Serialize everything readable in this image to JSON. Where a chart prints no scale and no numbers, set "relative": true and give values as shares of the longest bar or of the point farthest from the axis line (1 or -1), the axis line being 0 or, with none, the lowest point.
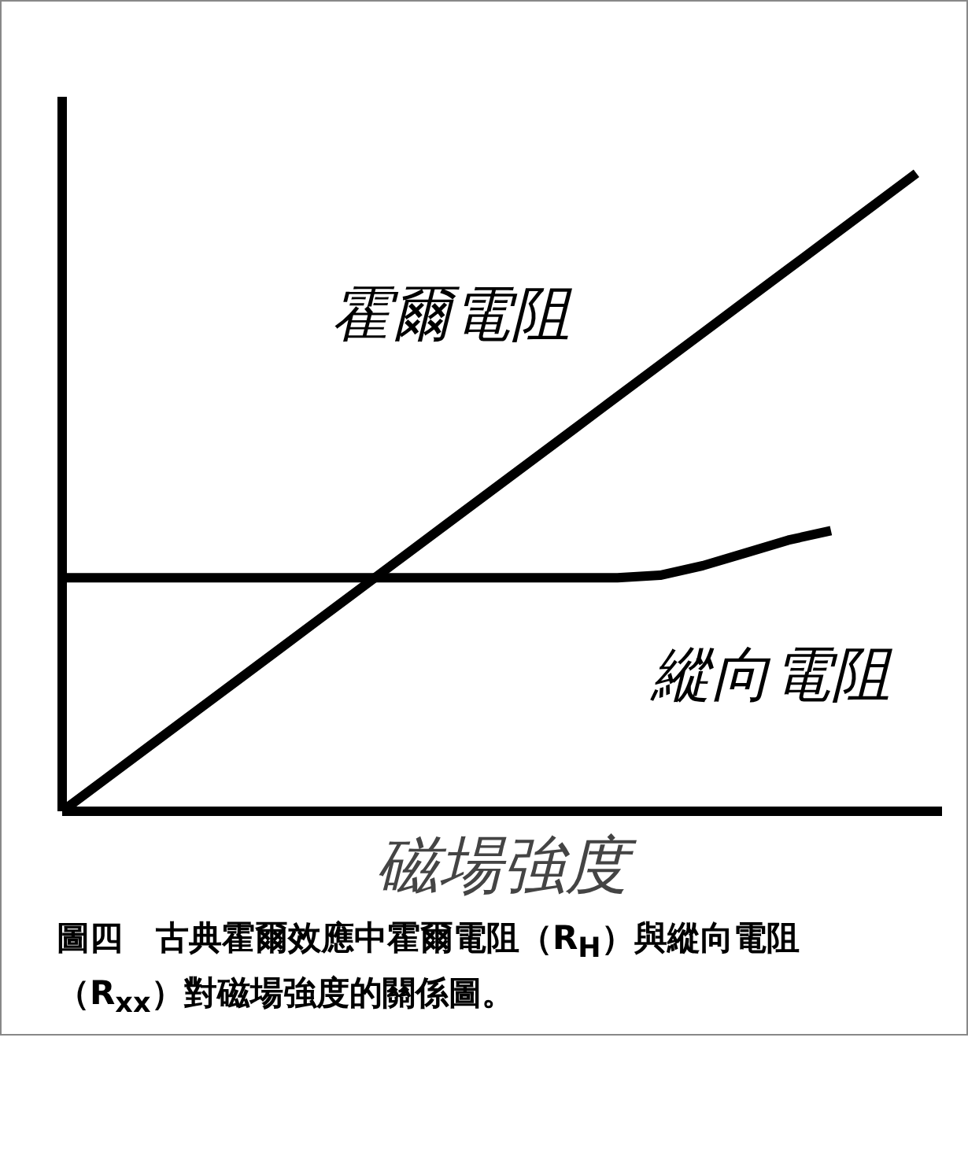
{
  "chart_data": {
    "type": "line",
    "relative": true,
    "xlabel": "磁場強度",
    "categories": [
      null,
      null,
      null,
      null,
      null,
      null,
      null,
      null,
      null,
      null,
      null,
      null,
      null,
      null,
      null,
      null,
      null,
      null,
      null,
      null,
      null
    ],
    "series": [
      {
        "name": "霍爾電阻",
        "color": "#000000",
        "values": [
          0,
          0.05,
          0.1,
          0.15,
          0.2,
          0.25,
          0.3,
          0.35,
          0.4,
          0.45,
          0.5,
          0.55,
          0.6,
          0.65,
          0.7,
          0.75,
          0.8,
          0.85,
          0.9,
          0.95,
          1.0
        ]
      },
      {
        "name": "縱向電阻",
        "color": "#000000",
        "values": [
          0.366,
          0.366,
          0.366,
          0.366,
          0.366,
          0.366,
          0.366,
          0.366,
          0.366,
          0.366,
          0.366,
          0.366,
          0.366,
          0.366,
          0.37,
          0.385,
          0.405,
          0.425,
          0.44,
          null,
          null
        ]
      }
    ],
    "annotations": [
      "圖四　古典霍爾效應中霍爾電阻（R$_{H}$）與縱向電阻（R$_{xx}$）對磁場強度的關係圖。"
    ],
    "grid": false,
    "marker": "none",
    "line_style": "solid"
  }
}
